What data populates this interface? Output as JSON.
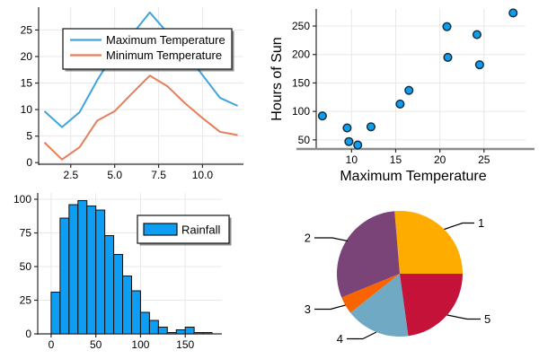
{
  "theme": {
    "background": "#FFFFFF",
    "grid_color": "#E8E8E8",
    "axis_color": "#2B2B2B",
    "tick_label_color": "#000000",
    "legend_border_color": "#222222",
    "legend_background": "#FFFFFF",
    "legend_shadow": "rgba(0,0,0,0.45)",
    "scatter_bottom_spine_color": "#8C8C8C"
  },
  "chart_data": [
    {
      "type": "line",
      "title": "",
      "xlabel": "",
      "ylabel": "",
      "x": [
        1,
        2,
        3,
        4,
        5,
        6,
        7,
        8,
        9,
        10,
        11,
        12
      ],
      "series": [
        {
          "name": "Maximum Temperature",
          "color": "#3FA4DE",
          "values": [
            9.7,
            6.7,
            9.5,
            15.5,
            20.8,
            24.2,
            28.3,
            24.5,
            20.9,
            16.5,
            12.2,
            10.7
          ]
        },
        {
          "name": "Minimum Temperature",
          "color": "#E67E5A",
          "values": [
            3.8,
            0.6,
            2.9,
            7.9,
            9.7,
            13.1,
            16.4,
            14.4,
            11.2,
            8.4,
            5.8,
            5.2
          ]
        }
      ],
      "xlim": [
        0.67,
        12.33
      ],
      "ylim": [
        -0.3,
        29.3
      ],
      "xtick_values": [
        2.5,
        5,
        7.5,
        10
      ],
      "xtick_labels": [
        "2.5",
        "5.0",
        "7.5",
        "10.0"
      ],
      "ytick_values": [
        0,
        5,
        10,
        15,
        20,
        25
      ],
      "ytick_labels": [
        "0",
        "5",
        "10",
        "15",
        "20",
        "25"
      ],
      "grid": true,
      "legend_position": "upper-center"
    },
    {
      "type": "scatter",
      "title": "",
      "xlabel": "Maximum Temperature",
      "ylabel": "Hours of Sun",
      "points": [
        [
          9.7,
          47
        ],
        [
          6.7,
          92
        ],
        [
          9.5,
          71
        ],
        [
          15.5,
          113
        ],
        [
          20.8,
          249
        ],
        [
          24.2,
          235
        ],
        [
          28.3,
          273
        ],
        [
          24.5,
          182
        ],
        [
          20.9,
          195
        ],
        [
          16.5,
          137
        ],
        [
          12.2,
          73
        ],
        [
          10.7,
          41
        ]
      ],
      "marker": {
        "shape": "circle",
        "fill": "#0D9DF2",
        "stroke": "#14303E",
        "radius_px": 4.3
      },
      "xlim": [
        6.0,
        29.7
      ],
      "ylim": [
        34,
        280
      ],
      "xtick_values": [
        10,
        15,
        20,
        25
      ],
      "xtick_labels": [
        "10",
        "15",
        "20",
        "25"
      ],
      "ytick_values": [
        50,
        100,
        150,
        200,
        250
      ],
      "ytick_labels": [
        "50",
        "100",
        "150",
        "200",
        "250"
      ],
      "grid": true,
      "legend_position": "none"
    },
    {
      "type": "histogram",
      "title": "",
      "xlabel": "",
      "ylabel": "",
      "series_name": "Rainfall",
      "bar_color": "#0D9DF2",
      "bar_stroke": "#111111",
      "bin_start": 0,
      "bin_width": 10,
      "counts": [
        31,
        86,
        96,
        99,
        95,
        92,
        73,
        59,
        43,
        32,
        16,
        10,
        5,
        1,
        3,
        5,
        1,
        1
      ],
      "xlim": [
        -15,
        191
      ],
      "ylim": [
        0,
        104.7
      ],
      "xtick_values": [
        0,
        50,
        100,
        150
      ],
      "xtick_labels": [
        "0",
        "50",
        "100",
        "150"
      ],
      "ytick_values": [
        0,
        25,
        50,
        75,
        100
      ],
      "ytick_labels": [
        "0",
        "25",
        "50",
        "75",
        "100"
      ],
      "grid": true,
      "legend_position": "middle-right"
    },
    {
      "type": "pie",
      "title": "",
      "labels": [
        "1",
        "2",
        "3",
        "4",
        "5"
      ],
      "values": [
        26.3,
        29.8,
        4.5,
        16.5,
        22.8
      ],
      "colors": [
        "#FFAC00",
        "#7B4478",
        "#FA6400",
        "#6FA9C4",
        "#C41238"
      ],
      "start_angle_deg": 0,
      "direction": "counterclockwise",
      "leader_line_color": "#000000"
    }
  ]
}
